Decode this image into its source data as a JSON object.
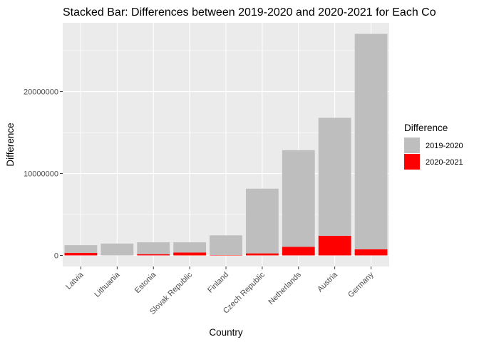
{
  "chart_data": {
    "type": "bar",
    "stacked": true,
    "title": "Stacked Bar: Differences between 2019-2020 and 2020-2021 for Each Co",
    "xlabel": "Country",
    "ylabel": "Difference",
    "categories": [
      "Latvia",
      "Lithuania",
      "Estonia",
      "Slovak Republic",
      "Finland",
      "Czech Republic",
      "Netherlands",
      "Austria",
      "Germany"
    ],
    "series": [
      {
        "name": "2019-2020",
        "color": "#bebebe",
        "values": [
          950000,
          1450000,
          1450000,
          1250000,
          2400000,
          7900000,
          11800000,
          14400000,
          26300000
        ]
      },
      {
        "name": "2020-2021",
        "color": "#ff0000",
        "values": [
          300000,
          0,
          150000,
          350000,
          50000,
          250000,
          1050000,
          2400000,
          750000
        ]
      }
    ],
    "yticks": [
      0,
      10000000,
      20000000
    ],
    "ytick_labels": [
      "0",
      "10000000",
      "20000000"
    ],
    "ylim": [
      -1350000,
      28400000
    ],
    "legend": {
      "title": "Difference",
      "placement": "right"
    },
    "grid": true
  }
}
